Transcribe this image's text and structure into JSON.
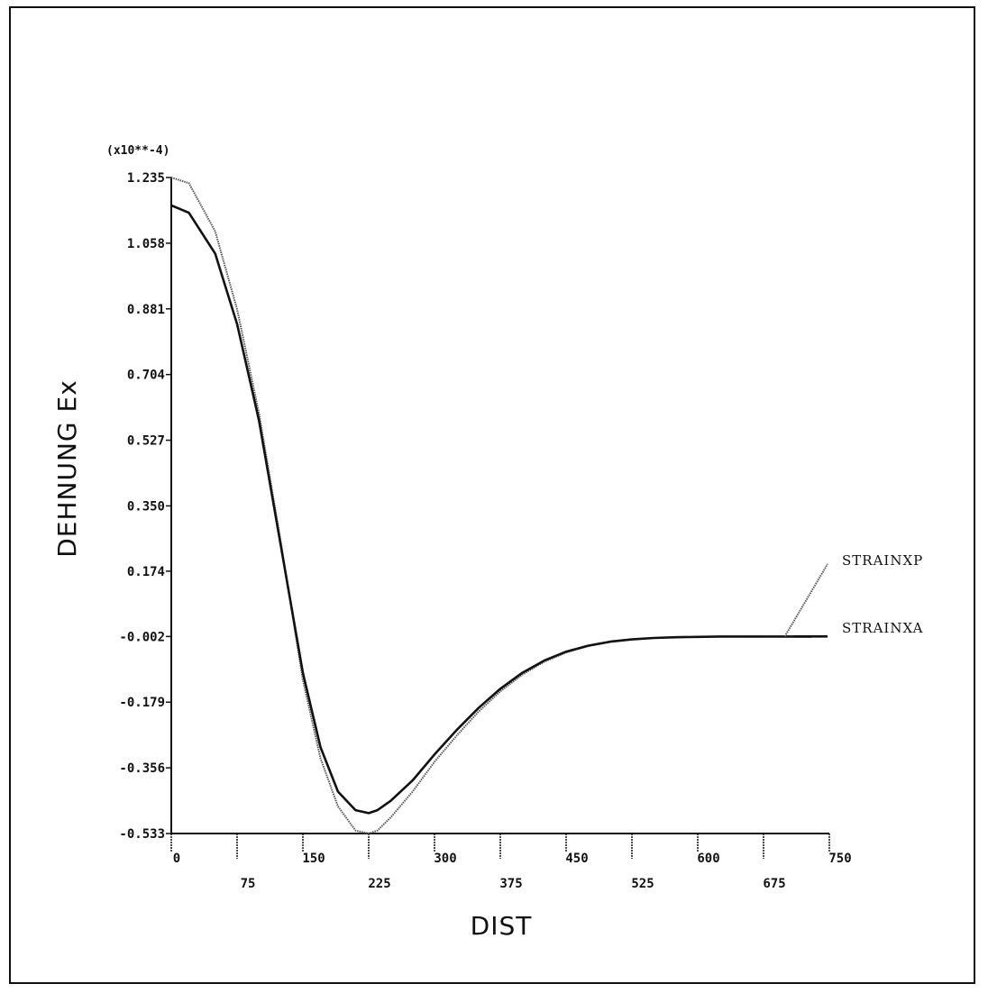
{
  "chart_data": {
    "type": "line",
    "xlabel": "DIST",
    "ylabel": "DEHNUNG Ex",
    "y_multiplier_label": "(x10**-4)",
    "xlim": [
      0,
      750
    ],
    "ylim": [
      -0.533,
      1.235
    ],
    "x_ticks": [
      "0",
      "75",
      "150",
      "225",
      "300",
      "375",
      "450",
      "525",
      "600",
      "675",
      "750"
    ],
    "y_ticks": [
      "1.235",
      "1.058",
      "0.881",
      "0.704",
      "0.527",
      "0.350",
      "0.174",
      "-0.002",
      "-0.179",
      "-0.356",
      "-0.533"
    ],
    "grid": false,
    "legend_position": "right",
    "series": [
      {
        "name": "STRAINXP",
        "style": "dotted-thin",
        "color": "#555555",
        "x": [
          0,
          20,
          50,
          75,
          100,
          125,
          150,
          170,
          190,
          210,
          225,
          235,
          250,
          275,
          300,
          325,
          350,
          375,
          400,
          425,
          450,
          475,
          500,
          525,
          550,
          575,
          600,
          625,
          650,
          675,
          700,
          720,
          730
        ],
        "y": [
          1.235,
          1.22,
          1.09,
          0.88,
          0.6,
          0.25,
          -0.12,
          -0.33,
          -0.46,
          -0.525,
          -0.533,
          -0.525,
          -0.49,
          -0.42,
          -0.34,
          -0.27,
          -0.205,
          -0.15,
          -0.105,
          -0.07,
          -0.045,
          -0.028,
          -0.017,
          -0.01,
          -0.006,
          -0.004,
          -0.003,
          -0.002,
          -0.002,
          -0.002,
          -0.002,
          -0.002,
          -0.002
        ]
      },
      {
        "name": "STRAINXA",
        "style": "solid",
        "color": "#111111",
        "x": [
          0,
          20,
          50,
          75,
          100,
          125,
          150,
          170,
          190,
          210,
          225,
          235,
          250,
          275,
          300,
          325,
          350,
          375,
          400,
          425,
          450,
          475,
          500,
          525,
          550,
          575,
          600,
          625,
          650,
          675,
          700,
          720,
          730
        ],
        "y": [
          1.16,
          1.14,
          1.03,
          0.84,
          0.58,
          0.24,
          -0.1,
          -0.3,
          -0.42,
          -0.47,
          -0.478,
          -0.47,
          -0.445,
          -0.39,
          -0.32,
          -0.255,
          -0.195,
          -0.143,
          -0.1,
          -0.067,
          -0.043,
          -0.027,
          -0.016,
          -0.01,
          -0.006,
          -0.004,
          -0.003,
          -0.002,
          -0.002,
          -0.002,
          -0.002,
          -0.002,
          -0.002
        ]
      }
    ]
  }
}
